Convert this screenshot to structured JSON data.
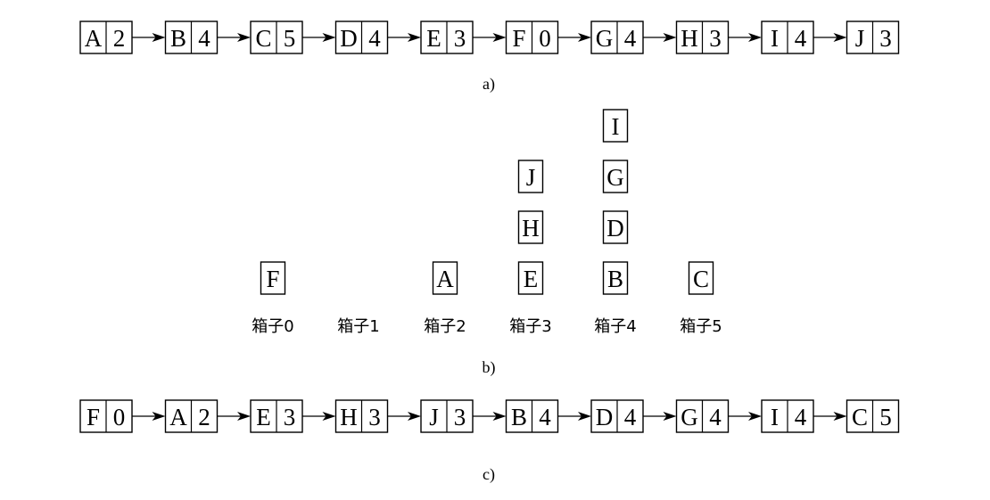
{
  "panel_a": {
    "caption": "a)",
    "nodes": [
      {
        "key": "A",
        "value": "2"
      },
      {
        "key": "B",
        "value": "4"
      },
      {
        "key": "C",
        "value": "5"
      },
      {
        "key": "D",
        "value": "4"
      },
      {
        "key": "E",
        "value": "3"
      },
      {
        "key": "F",
        "value": "0"
      },
      {
        "key": "G",
        "value": "4"
      },
      {
        "key": "H",
        "value": "3"
      },
      {
        "key": "I",
        "value": "4"
      },
      {
        "key": "J",
        "value": "3"
      }
    ]
  },
  "panel_b": {
    "caption": "b)",
    "bins": [
      {
        "label": "箱子0",
        "items": [
          "F"
        ]
      },
      {
        "label": "箱子1",
        "items": []
      },
      {
        "label": "箱子2",
        "items": [
          "A"
        ]
      },
      {
        "label": "箱子3",
        "items": [
          "E",
          "H",
          "J"
        ]
      },
      {
        "label": "箱子4",
        "items": [
          "B",
          "D",
          "G",
          "I"
        ]
      },
      {
        "label": "箱子5",
        "items": [
          "C"
        ]
      }
    ]
  },
  "panel_c": {
    "caption": "c)",
    "nodes": [
      {
        "key": "F",
        "value": "0"
      },
      {
        "key": "A",
        "value": "2"
      },
      {
        "key": "E",
        "value": "3"
      },
      {
        "key": "H",
        "value": "3"
      },
      {
        "key": "J",
        "value": "3"
      },
      {
        "key": "B",
        "value": "4"
      },
      {
        "key": "D",
        "value": "4"
      },
      {
        "key": "G",
        "value": "4"
      },
      {
        "key": "I",
        "value": "4"
      },
      {
        "key": "C",
        "value": "5"
      }
    ]
  }
}
